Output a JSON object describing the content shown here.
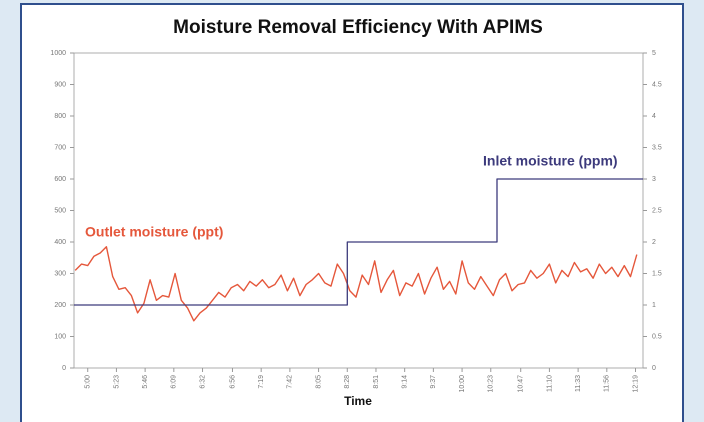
{
  "chart_data": {
    "type": "line",
    "title": "Moisture Removal Efficiency With APIMS",
    "x_label": "Time",
    "xlim": [
      -11,
      445
    ],
    "xticks": [
      {
        "value": 0,
        "label": "5:00"
      },
      {
        "value": 23,
        "label": "5:23"
      },
      {
        "value": 46,
        "label": "5:46"
      },
      {
        "value": 69,
        "label": "6:09"
      },
      {
        "value": 92,
        "label": "6:32"
      },
      {
        "value": 116,
        "label": "6:56"
      },
      {
        "value": 139,
        "label": "7:19"
      },
      {
        "value": 162,
        "label": "7:42"
      },
      {
        "value": 185,
        "label": "8:05"
      },
      {
        "value": 208,
        "label": "8:28"
      },
      {
        "value": 231,
        "label": "8:51"
      },
      {
        "value": 254,
        "label": "9:14"
      },
      {
        "value": 277,
        "label": "9:37"
      },
      {
        "value": 300,
        "label": "10:00"
      },
      {
        "value": 323,
        "label": "10:23"
      },
      {
        "value": 347,
        "label": "10:47"
      },
      {
        "value": 370,
        "label": "11:10"
      },
      {
        "value": 393,
        "label": "11:33"
      },
      {
        "value": 416,
        "label": "11:56"
      },
      {
        "value": 439,
        "label": "12:19"
      }
    ],
    "ylim": [
      0,
      1000
    ],
    "yticks": [
      0,
      100,
      200,
      300,
      400,
      500,
      600,
      700,
      800,
      900,
      1000
    ],
    "y2lim": [
      0,
      5
    ],
    "y2ticks": [
      0,
      0.5,
      1,
      1.5,
      2,
      2.5,
      3,
      3.5,
      4,
      4.5,
      5
    ],
    "series": [
      {
        "name": "Outlet moisture (ppt)",
        "color": "#e5573b",
        "x": [
          -10,
          -5,
          0,
          5,
          10,
          15,
          20,
          25,
          30,
          35,
          40,
          45,
          50,
          55,
          60,
          65,
          70,
          75,
          80,
          85,
          90,
          95,
          100,
          105,
          110,
          115,
          120,
          125,
          130,
          135,
          140,
          145,
          150,
          155,
          160,
          165,
          170,
          175,
          180,
          185,
          190,
          195,
          200,
          205,
          210,
          215,
          220,
          225,
          230,
          235,
          240,
          245,
          250,
          255,
          260,
          265,
          270,
          275,
          280,
          285,
          290,
          295,
          300,
          305,
          310,
          315,
          320,
          325,
          330,
          335,
          340,
          345,
          350,
          355,
          360,
          365,
          370,
          375,
          380,
          385,
          390,
          395,
          400,
          405,
          410,
          415,
          420,
          425,
          430,
          435,
          440
        ],
        "values": [
          310,
          330,
          325,
          355,
          365,
          385,
          290,
          250,
          255,
          230,
          175,
          205,
          280,
          215,
          230,
          225,
          300,
          215,
          190,
          150,
          175,
          190,
          215,
          240,
          225,
          255,
          265,
          245,
          275,
          260,
          280,
          255,
          265,
          295,
          245,
          285,
          230,
          265,
          280,
          300,
          270,
          260,
          330,
          300,
          245,
          225,
          295,
          265,
          340,
          240,
          280,
          310,
          230,
          270,
          260,
          300,
          235,
          285,
          320,
          250,
          275,
          235,
          340,
          270,
          250,
          290,
          260,
          230,
          280,
          300,
          245,
          265,
          270,
          310,
          285,
          300,
          330,
          270,
          310,
          290,
          335,
          305,
          315,
          285,
          330,
          300,
          320,
          290,
          325,
          290,
          360
        ]
      },
      {
        "name": "Inlet moisture (ppm)",
        "color": "#3c3a7c",
        "axis": "y2",
        "x": [
          -11,
          208,
          208,
          328,
          328,
          445
        ],
        "values": [
          1,
          1,
          2,
          2,
          3,
          3
        ]
      }
    ]
  }
}
